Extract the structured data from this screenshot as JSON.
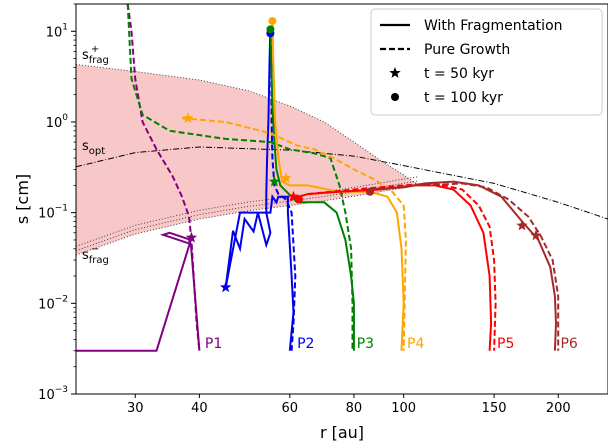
{
  "chart_data": {
    "type": "line",
    "title": "",
    "xlabel": "r [au]",
    "ylabel": "s [cm]",
    "xscale": "log",
    "yscale": "log",
    "xlim": [
      23,
      250
    ],
    "ylim": [
      0.001,
      20
    ],
    "x_ticks": [
      {
        "value": 30,
        "label": "30"
      },
      {
        "value": 40,
        "label": "40"
      },
      {
        "value": 60,
        "label": "60"
      },
      {
        "value": 80,
        "label": "80"
      },
      {
        "value": 100,
        "label": "100"
      },
      {
        "value": 150,
        "label": "150"
      },
      {
        "value": 200,
        "label": "200"
      }
    ],
    "y_ticks": [
      {
        "value": 0.001,
        "base": "10",
        "exp": "−3"
      },
      {
        "value": 0.01,
        "base": "10",
        "exp": "−2"
      },
      {
        "value": 0.1,
        "base": "10",
        "exp": "−1"
      },
      {
        "value": 1,
        "base": "10",
        "exp": "0"
      },
      {
        "value": 10,
        "base": "10",
        "exp": "1"
      }
    ],
    "grid": false,
    "legend": {
      "placement": "top-right",
      "entries": [
        {
          "label": "With Fragmentation",
          "marker": "solid-line"
        },
        {
          "label": "Pure Growth",
          "marker": "dashed-line"
        },
        {
          "label": "t = 50 kyr",
          "marker": "star"
        },
        {
          "label": "t = 100 kyr",
          "marker": "circle"
        }
      ]
    },
    "region": {
      "label_upper_base": "s",
      "label_upper_sub": "frag",
      "label_upper_sup": "+",
      "label_lower_base": "s",
      "label_lower_sub": "frag",
      "label_lower_sup": "−",
      "label_opt_base": "s",
      "label_opt_sub": "opt",
      "fill": "#f8c8c8",
      "upper": [
        [
          23,
          4.3
        ],
        [
          30,
          3.6
        ],
        [
          40,
          2.9
        ],
        [
          50,
          2.2
        ],
        [
          60,
          1.5
        ],
        [
          70,
          1.0
        ],
        [
          80,
          0.6
        ],
        [
          90,
          0.38
        ],
        [
          100,
          0.26
        ],
        [
          107,
          0.2
        ]
      ],
      "lower": [
        [
          23,
          0.034
        ],
        [
          30,
          0.058
        ],
        [
          40,
          0.085
        ],
        [
          50,
          0.105
        ],
        [
          60,
          0.12
        ],
        [
          70,
          0.135
        ],
        [
          80,
          0.152
        ],
        [
          90,
          0.17
        ],
        [
          100,
          0.188
        ],
        [
          107,
          0.2
        ]
      ],
      "opt": [
        [
          23,
          0.32
        ],
        [
          30,
          0.46
        ],
        [
          40,
          0.53
        ],
        [
          60,
          0.49
        ],
        [
          80,
          0.42
        ],
        [
          100,
          0.33
        ],
        [
          150,
          0.21
        ],
        [
          200,
          0.13
        ],
        [
          250,
          0.085
        ]
      ]
    },
    "series": [
      {
        "name": "P1",
        "color": "#800080",
        "solid": [
          [
            23,
            0.003
          ],
          [
            33,
            0.003
          ],
          [
            38.5,
            0.05
          ],
          [
            35,
            0.06
          ],
          [
            34,
            0.057
          ],
          [
            38.5,
            0.045
          ],
          [
            40,
            0.003
          ]
        ],
        "dashed": [
          [
            29,
            20
          ],
          [
            29.5,
            10
          ],
          [
            30,
            3
          ],
          [
            31,
            1.0
          ],
          [
            33,
            0.5
          ],
          [
            35.5,
            0.25
          ],
          [
            37,
            0.15
          ],
          [
            38.2,
            0.09
          ],
          [
            38.6,
            0.05
          ],
          [
            39,
            0.02
          ],
          [
            39.5,
            0.006
          ],
          [
            40,
            0.003
          ]
        ],
        "star": [
          38.6,
          0.053
        ],
        "circle": null,
        "label": "P1",
        "label_at": [
          41,
          0.0032
        ]
      },
      {
        "name": "P2",
        "color": "#0000ee",
        "solid": [
          [
            55,
            11
          ],
          [
            54.8,
            5
          ],
          [
            54.5,
            1
          ],
          [
            54.2,
            0.4
          ],
          [
            54,
            0.16
          ],
          [
            54,
            0.1
          ],
          [
            55,
            0.06
          ],
          [
            54,
            0.044
          ],
          [
            52,
            0.1
          ],
          [
            51,
            0.062
          ],
          [
            49,
            0.085
          ],
          [
            48,
            0.04
          ],
          [
            46.5,
            0.063
          ],
          [
            45,
            0.015
          ],
          [
            48,
            0.1
          ],
          [
            55,
            0.1
          ],
          [
            55.5,
            0.15
          ],
          [
            56.5,
            0.13
          ],
          [
            57,
            0.15
          ],
          [
            59.5,
            0.15
          ],
          [
            59.5,
            0.1
          ],
          [
            60.5,
            0.02
          ],
          [
            61,
            0.008
          ],
          [
            60,
            0.003
          ]
        ],
        "dashed": [
          [
            55,
            11
          ],
          [
            55.2,
            5
          ],
          [
            55.3,
            1
          ],
          [
            55.5,
            0.4
          ],
          [
            56,
            0.2
          ],
          [
            57,
            0.16
          ],
          [
            59,
            0.14
          ],
          [
            60.5,
            0.1
          ],
          [
            61.5,
            0.02
          ],
          [
            61,
            0.006
          ],
          [
            60.5,
            0.003
          ]
        ],
        "star": [
          45,
          0.015
        ],
        "circle": [
          55,
          9.5
        ],
        "label": "P2",
        "label_at": [
          62,
          0.0032
        ]
      },
      {
        "name": "P3",
        "color": "#008000",
        "solid": [
          [
            55,
            11
          ],
          [
            55.2,
            5
          ],
          [
            55.5,
            1.5
          ],
          [
            56,
            0.6
          ],
          [
            56.5,
            0.3
          ],
          [
            57.5,
            0.2
          ],
          [
            62,
            0.13
          ],
          [
            70,
            0.13
          ],
          [
            74,
            0.1
          ],
          [
            77,
            0.05
          ],
          [
            79,
            0.02
          ],
          [
            80,
            0.01
          ],
          [
            80,
            0.003
          ]
        ],
        "dashed": [
          [
            29,
            20
          ],
          [
            29.5,
            3
          ],
          [
            31,
            1.2
          ],
          [
            35,
            0.8
          ],
          [
            45,
            0.65
          ],
          [
            55,
            0.6
          ],
          [
            60,
            0.5
          ],
          [
            67,
            0.45
          ],
          [
            72,
            0.4
          ],
          [
            75,
            0.2
          ],
          [
            77,
            0.1
          ],
          [
            79,
            0.04
          ],
          [
            79.5,
            0.01
          ],
          [
            79.5,
            0.003
          ]
        ],
        "star": [
          56,
          0.22
        ],
        "circle": [
          55,
          10.5
        ],
        "label": "P3",
        "label_at": [
          81,
          0.0032
        ]
      },
      {
        "name": "P4",
        "color": "#ffa500",
        "solid": [
          [
            55.5,
            14
          ],
          [
            55.7,
            5
          ],
          [
            56.2,
            1
          ],
          [
            57,
            0.4
          ],
          [
            58,
            0.22
          ],
          [
            60,
            0.2
          ],
          [
            65,
            0.2
          ],
          [
            75,
            0.17
          ],
          [
            86,
            0.17
          ],
          [
            93,
            0.15
          ],
          [
            97,
            0.1
          ],
          [
            99,
            0.04
          ],
          [
            100,
            0.01
          ],
          [
            99,
            0.003
          ]
        ],
        "dashed": [
          [
            37,
            1.1
          ],
          [
            45,
            1.0
          ],
          [
            55,
            0.75
          ],
          [
            62,
            0.55
          ],
          [
            67,
            0.5
          ],
          [
            73,
            0.4
          ],
          [
            80,
            0.3
          ],
          [
            88,
            0.23
          ],
          [
            95,
            0.17
          ],
          [
            100,
            0.12
          ],
          [
            101,
            0.05
          ],
          [
            100,
            0.003
          ]
        ],
        "star": [
          38,
          1.1
        ],
        "circle": [
          55.5,
          13
        ],
        "label": "P4",
        "label_at": [
          101.5,
          0.0032
        ]
      },
      {
        "name": "P5",
        "color": "#ff0000",
        "solid": [
          [
            60,
            0.14
          ],
          [
            65,
            0.16
          ],
          [
            75,
            0.17
          ],
          [
            90,
            0.18
          ],
          [
            105,
            0.2
          ],
          [
            115,
            0.2
          ],
          [
            125,
            0.18
          ],
          [
            135,
            0.12
          ],
          [
            143,
            0.06
          ],
          [
            147,
            0.02
          ],
          [
            148,
            0.006
          ],
          [
            147,
            0.003
          ]
        ],
        "dashed": [
          [
            65,
            0.16
          ],
          [
            80,
            0.18
          ],
          [
            100,
            0.2
          ],
          [
            115,
            0.21
          ],
          [
            130,
            0.18
          ],
          [
            140,
            0.12
          ],
          [
            147,
            0.07
          ],
          [
            150,
            0.03
          ],
          [
            151,
            0.01
          ],
          [
            150,
            0.003
          ]
        ],
        "star": [
          61,
          0.15
        ],
        "circle": [
          62.5,
          0.14
        ],
        "label": "P5",
        "label_at": [
          152,
          0.0032
        ]
      },
      {
        "name": "P6",
        "color": "#a52a2a",
        "solid": [
          [
            85,
            0.18
          ],
          [
            100,
            0.19
          ],
          [
            110,
            0.21
          ],
          [
            125,
            0.22
          ],
          [
            140,
            0.2
          ],
          [
            155,
            0.15
          ],
          [
            170,
            0.08
          ],
          [
            183,
            0.05
          ],
          [
            193,
            0.025
          ],
          [
            197,
            0.012
          ],
          [
            198,
            0.006
          ],
          [
            197,
            0.003
          ]
        ],
        "dashed": [
          [
            110,
            0.2
          ],
          [
            130,
            0.21
          ],
          [
            145,
            0.19
          ],
          [
            160,
            0.14
          ],
          [
            175,
            0.09
          ],
          [
            185,
            0.055
          ],
          [
            195,
            0.03
          ],
          [
            200,
            0.012
          ],
          [
            200,
            0.003
          ]
        ],
        "star": [
          170,
          0.072
        ],
        "circle": [
          86,
          0.17
        ],
        "label": "P6",
        "label_at": [
          202,
          0.0032
        ]
      }
    ],
    "extra_markers": [
      {
        "type": "star",
        "color": "#ffa500",
        "at": [
          59,
          0.24
        ]
      },
      {
        "type": "star",
        "color": "#a52a2a",
        "at": [
          181,
          0.056
        ]
      }
    ]
  }
}
